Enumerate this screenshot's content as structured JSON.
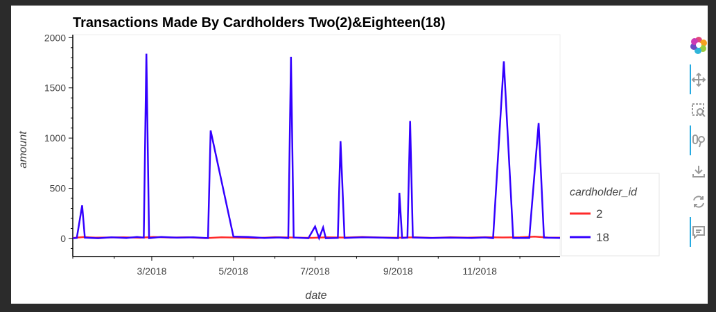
{
  "chart_data": {
    "type": "line",
    "title": "Transactions Made By Cardholders Two(2)&Eighteen(18)",
    "xlabel": "date",
    "ylabel": "amount",
    "xlim": [
      "2018-01-01",
      "2018-12-31"
    ],
    "ylim": [
      -180,
      2030
    ],
    "x_ticks": [
      "3/2018",
      "5/2018",
      "7/2018",
      "9/2018",
      "11/2018"
    ],
    "x_tick_dates": [
      "2018-03-01",
      "2018-05-01",
      "2018-07-01",
      "2018-09-01",
      "2018-11-01"
    ],
    "y_ticks": [
      0,
      500,
      1000,
      1500,
      2000
    ],
    "y_tick_labels": [
      "0",
      "500",
      "1000",
      "1500",
      "2000"
    ],
    "legend": {
      "title": "cardholder_id",
      "placement": "right"
    },
    "grid": false,
    "series": [
      {
        "name": "2",
        "color": "#ff2a2a",
        "points": [
          [
            "2018-01-01",
            5
          ],
          [
            "2018-01-09",
            14
          ],
          [
            "2018-01-18",
            8
          ],
          [
            "2018-01-28",
            10
          ],
          [
            "2018-02-08",
            12
          ],
          [
            "2018-02-20",
            7
          ],
          [
            "2018-03-02",
            15
          ],
          [
            "2018-03-15",
            9
          ],
          [
            "2018-03-28",
            11
          ],
          [
            "2018-04-10",
            3
          ],
          [
            "2018-04-22",
            12
          ],
          [
            "2018-05-05",
            8
          ],
          [
            "2018-05-18",
            4
          ],
          [
            "2018-06-01",
            13
          ],
          [
            "2018-06-15",
            9
          ],
          [
            "2018-06-28",
            6
          ],
          [
            "2018-07-10",
            12
          ],
          [
            "2018-07-23",
            9
          ],
          [
            "2018-08-05",
            15
          ],
          [
            "2018-08-18",
            10
          ],
          [
            "2018-09-01",
            7
          ],
          [
            "2018-09-14",
            12
          ],
          [
            "2018-09-27",
            6
          ],
          [
            "2018-10-10",
            11
          ],
          [
            "2018-10-23",
            8
          ],
          [
            "2018-11-05",
            13
          ],
          [
            "2018-11-18",
            10
          ],
          [
            "2018-12-01",
            12
          ],
          [
            "2018-12-12",
            18
          ],
          [
            "2018-12-22",
            9
          ],
          [
            "2018-12-31",
            8
          ]
        ]
      },
      {
        "name": "18",
        "color": "#3300ff",
        "points": [
          [
            "2018-01-01",
            2
          ],
          [
            "2018-01-04",
            5
          ],
          [
            "2018-01-08",
            330
          ],
          [
            "2018-01-10",
            8
          ],
          [
            "2018-01-20",
            2
          ],
          [
            "2018-01-30",
            12
          ],
          [
            "2018-02-10",
            5
          ],
          [
            "2018-02-18",
            15
          ],
          [
            "2018-02-23",
            8
          ],
          [
            "2018-02-25",
            1840
          ],
          [
            "2018-02-27",
            3
          ],
          [
            "2018-03-08",
            15
          ],
          [
            "2018-03-20",
            8
          ],
          [
            "2018-04-01",
            12
          ],
          [
            "2018-04-12",
            4
          ],
          [
            "2018-04-14",
            1075
          ],
          [
            "2018-05-01",
            18
          ],
          [
            "2018-05-12",
            15
          ],
          [
            "2018-05-24",
            5
          ],
          [
            "2018-06-04",
            10
          ],
          [
            "2018-06-11",
            4
          ],
          [
            "2018-06-13",
            1810
          ],
          [
            "2018-06-15",
            9
          ],
          [
            "2018-06-26",
            2
          ],
          [
            "2018-07-01",
            120
          ],
          [
            "2018-07-04",
            3
          ],
          [
            "2018-07-07",
            110
          ],
          [
            "2018-07-09",
            2
          ],
          [
            "2018-07-18",
            5
          ],
          [
            "2018-07-20",
            970
          ],
          [
            "2018-07-23",
            5
          ],
          [
            "2018-08-06",
            12
          ],
          [
            "2018-08-20",
            8
          ],
          [
            "2018-09-01",
            3
          ],
          [
            "2018-09-02",
            455
          ],
          [
            "2018-09-04",
            5
          ],
          [
            "2018-09-08",
            8
          ],
          [
            "2018-09-10",
            1170
          ],
          [
            "2018-09-12",
            10
          ],
          [
            "2018-09-25",
            5
          ],
          [
            "2018-10-10",
            8
          ],
          [
            "2018-10-26",
            5
          ],
          [
            "2018-11-05",
            10
          ],
          [
            "2018-11-11",
            3
          ],
          [
            "2018-11-19",
            1765
          ],
          [
            "2018-11-26",
            5
          ],
          [
            "2018-12-08",
            5
          ],
          [
            "2018-12-15",
            1150
          ],
          [
            "2018-12-19",
            8
          ],
          [
            "2018-12-31",
            5
          ]
        ]
      }
    ]
  },
  "toolbar": {
    "icons": [
      "bokeh-logo-icon",
      "pan-icon",
      "box-zoom-icon",
      "wheel-zoom-icon",
      "save-icon",
      "reset-icon",
      "hover-icon"
    ]
  }
}
